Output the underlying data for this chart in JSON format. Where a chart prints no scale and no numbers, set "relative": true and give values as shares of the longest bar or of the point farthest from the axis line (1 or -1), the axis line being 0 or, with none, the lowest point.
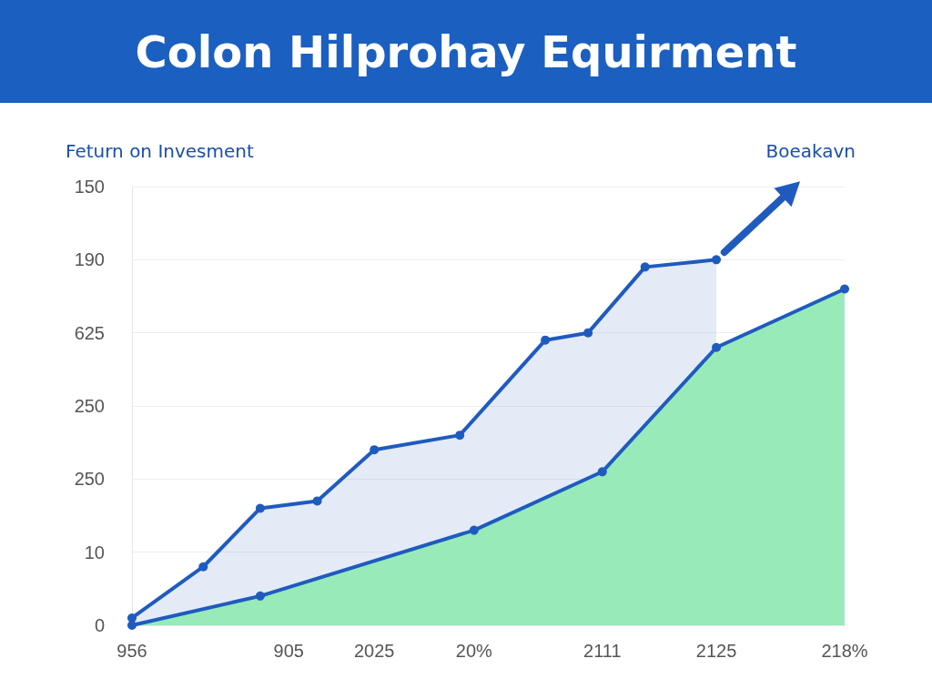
{
  "chart_data": {
    "type": "area",
    "title": "Colon Hilprohay Equirment",
    "subtitle": "Feturn on Invesment",
    "annotations": [
      "Boeakavn",
      "0",
      "10",
      "250",
      "250",
      "625",
      "190",
      "150"
    ],
    "relative": true,
    "categories": [
      "956",
      null,
      null,
      null,
      null,
      null,
      null,
      null,
      null,
      null,
      null,
      "905",
      null,
      null,
      null,
      null,
      null,
      "2025",
      null,
      null,
      null,
      null,
      null,
      null,
      "20%",
      null,
      null,
      null,
      null,
      null,
      null,
      null,
      null,
      "2111",
      null,
      null,
      null,
      null,
      null,
      null,
      null,
      "2125",
      null,
      null,
      null,
      null,
      null,
      null,
      null,
      null,
      "218%"
    ],
    "series": [
      {
        "color": "#1f5bbf",
        "values": [
          0.02,
          null,
          null,
          null,
          null,
          0.16,
          null,
          null,
          null,
          0.32,
          null,
          null,
          null,
          0.34,
          null,
          null,
          null,
          0.48,
          null,
          null,
          null,
          null,
          null,
          0.52,
          null,
          null,
          null,
          null,
          null,
          0.78,
          null,
          null,
          0.8,
          null,
          null,
          null,
          0.98,
          null,
          null,
          null,
          null,
          1.0,
          null,
          null,
          null,
          null,
          null,
          null,
          null,
          null,
          null
        ]
      },
      {
        "color": "#98eab8",
        "values": [
          0.0,
          null,
          null,
          null,
          null,
          null,
          null,
          null,
          null,
          0.08,
          null,
          null,
          null,
          null,
          null,
          null,
          null,
          null,
          null,
          null,
          null,
          null,
          null,
          null,
          0.26,
          null,
          null,
          null,
          null,
          null,
          null,
          null,
          null,
          0.42,
          null,
          null,
          null,
          null,
          null,
          null,
          null,
          0.76,
          null,
          null,
          null,
          null,
          null,
          null,
          null,
          null,
          0.92
        ]
      }
    ],
    "grid": "y",
    "marker": "circle",
    "line_style": "solid"
  }
}
